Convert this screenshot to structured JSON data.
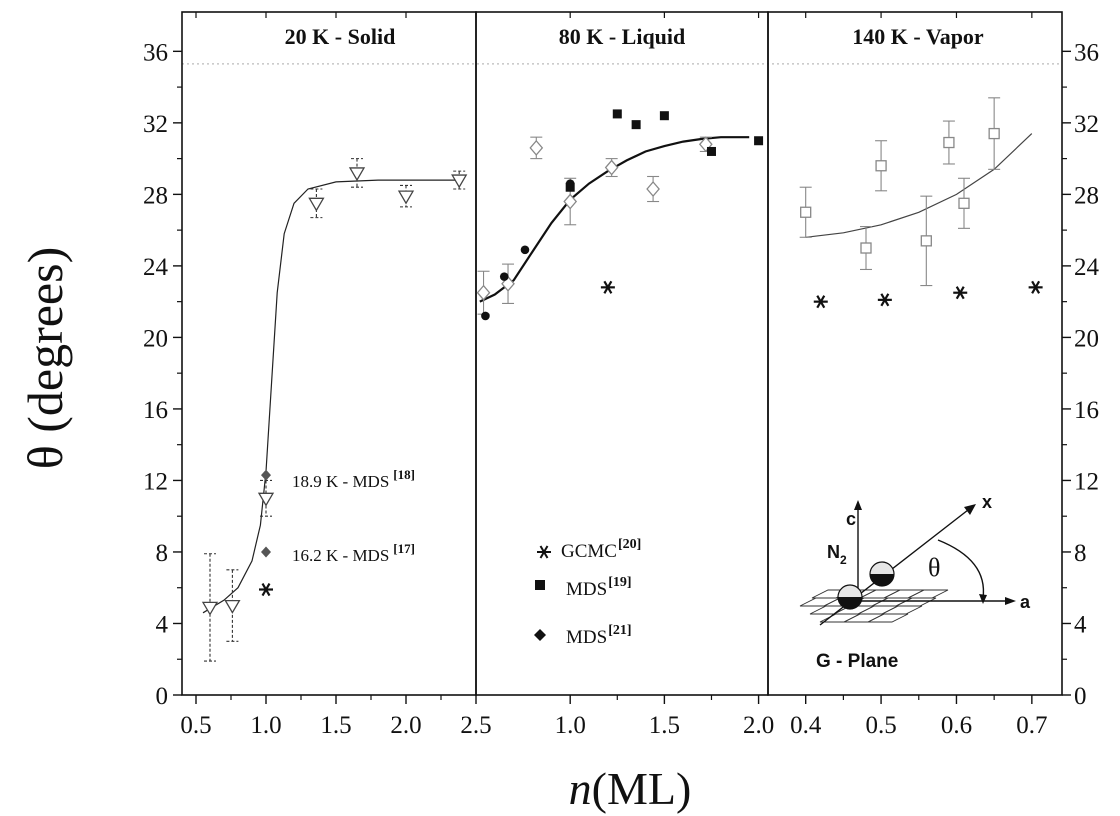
{
  "figure": {
    "ylabel": "θ (degrees)",
    "xlabel_var": "n",
    "xlabel_unit": "(ML)",
    "y_ticks": [
      "0",
      "4",
      "8",
      "12",
      "16",
      "20",
      "24",
      "28",
      "32",
      "36"
    ],
    "ylim": [
      0,
      38.2
    ],
    "reference_line_y": 35.3,
    "colors": {
      "solid_open": "#444444",
      "gray": "#888888",
      "black": "#111111",
      "reference_line": "#bbbbbb"
    }
  },
  "chart_data": [
    {
      "type": "scatter",
      "title": "20 K - Solid",
      "xlim": [
        0.4,
        2.5
      ],
      "x_ticks": [
        "0.5",
        "1.0",
        "1.5",
        "2.0",
        "2.5"
      ],
      "series": [
        {
          "marker": "open-down-triangle",
          "points": [
            {
              "x": 0.6,
              "y": 4.9,
              "err": 3.0
            },
            {
              "x": 0.76,
              "y": 5.0,
              "err": 2.0
            },
            {
              "x": 1.0,
              "y": 11.0,
              "err": 1.0
            },
            {
              "x": 1.36,
              "y": 27.5,
              "err": 0.8
            },
            {
              "x": 1.65,
              "y": 29.2,
              "err": 0.8
            },
            {
              "x": 2.0,
              "y": 27.9,
              "err": 0.6
            },
            {
              "x": 2.38,
              "y": 28.8,
              "err": 0.5
            }
          ],
          "fit": [
            [
              0.55,
              4.6
            ],
            [
              0.7,
              5.3
            ],
            [
              0.8,
              6.0
            ],
            [
              0.9,
              7.5
            ],
            [
              0.96,
              9.5
            ],
            [
              1.0,
              12.5
            ],
            [
              1.04,
              17.5
            ],
            [
              1.08,
              22.5
            ],
            [
              1.13,
              25.8
            ],
            [
              1.2,
              27.5
            ],
            [
              1.3,
              28.3
            ],
            [
              1.5,
              28.7
            ],
            [
              1.8,
              28.8
            ],
            [
              2.35,
              28.8
            ]
          ]
        },
        {
          "name": "18.9 K - MDS",
          "ref": "[18]",
          "marker": "filled-diamond-gray",
          "points": [
            {
              "x": 1.0,
              "y": 12.3
            }
          ]
        },
        {
          "name": "16.2 K - MDS",
          "ref": "[17]",
          "marker": "filled-diamond-gray",
          "points": [
            {
              "x": 1.0,
              "y": 8.0
            }
          ]
        },
        {
          "marker": "asterisk",
          "points": [
            {
              "x": 1.0,
              "y": 5.9
            }
          ]
        }
      ]
    },
    {
      "type": "scatter",
      "title": "80 K - Liquid",
      "xlim": [
        0.5,
        2.05
      ],
      "x_ticks": [
        "1.0",
        "1.5",
        "2.0"
      ],
      "series": [
        {
          "marker": "open-diamond",
          "points": [
            {
              "x": 0.54,
              "y": 22.5,
              "err": 1.2
            },
            {
              "x": 0.67,
              "y": 23.0,
              "err": 1.1
            },
            {
              "x": 0.82,
              "y": 30.6,
              "err": 0.6
            },
            {
              "x": 1.0,
              "y": 27.6,
              "err": 1.3
            },
            {
              "x": 1.22,
              "y": 29.5,
              "err": 0.5
            },
            {
              "x": 1.44,
              "y": 28.3,
              "err": 0.7
            },
            {
              "x": 1.72,
              "y": 30.8,
              "err": 0.4
            }
          ],
          "fit": [
            [
              0.52,
              22.0
            ],
            [
              0.6,
              22.4
            ],
            [
              0.7,
              23.2
            ],
            [
              0.8,
              24.8
            ],
            [
              0.9,
              26.4
            ],
            [
              1.0,
              27.7
            ],
            [
              1.1,
              28.6
            ],
            [
              1.2,
              29.3
            ],
            [
              1.3,
              29.9
            ],
            [
              1.4,
              30.4
            ],
            [
              1.5,
              30.7
            ],
            [
              1.6,
              30.95
            ],
            [
              1.7,
              31.1
            ],
            [
              1.8,
              31.2
            ],
            [
              1.95,
              31.2
            ]
          ]
        },
        {
          "name": "GCMC",
          "ref": "[20]",
          "marker": "asterisk",
          "points": [
            {
              "x": 1.2,
              "y": 22.8
            }
          ]
        },
        {
          "name": "MDS",
          "ref": "[19]",
          "marker": "filled-square",
          "points": [
            {
              "x": 1.25,
              "y": 32.5
            },
            {
              "x": 1.35,
              "y": 31.9
            },
            {
              "x": 1.5,
              "y": 32.4
            },
            {
              "x": 1.75,
              "y": 30.4
            },
            {
              "x": 2.0,
              "y": 31.0
            },
            {
              "x": 1.0,
              "y": 28.4
            }
          ]
        },
        {
          "name": "MDS",
          "ref": "[21]",
          "marker": "filled-circle",
          "points": [
            {
              "x": 0.55,
              "y": 21.2
            },
            {
              "x": 0.65,
              "y": 23.4
            },
            {
              "x": 0.76,
              "y": 24.9
            },
            {
              "x": 1.0,
              "y": 28.6
            }
          ]
        }
      ]
    },
    {
      "type": "scatter",
      "title": "140 K - Vapor",
      "xlim": [
        0.35,
        0.74
      ],
      "x_ticks": [
        "0.4",
        "0.5",
        "0.6",
        "0.7"
      ],
      "series": [
        {
          "marker": "open-square-gray",
          "points": [
            {
              "x": 0.4,
              "y": 27.0,
              "err": 1.4
            },
            {
              "x": 0.48,
              "y": 25.0,
              "err": 1.2
            },
            {
              "x": 0.5,
              "y": 29.6,
              "err": 1.4
            },
            {
              "x": 0.56,
              "y": 25.4,
              "err": 2.5
            },
            {
              "x": 0.59,
              "y": 30.9,
              "err": 1.2
            },
            {
              "x": 0.61,
              "y": 27.5,
              "err": 1.4
            },
            {
              "x": 0.65,
              "y": 31.4,
              "err": 2.0
            }
          ],
          "fit": [
            [
              0.4,
              25.6
            ],
            [
              0.45,
              25.85
            ],
            [
              0.5,
              26.3
            ],
            [
              0.55,
              27.0
            ],
            [
              0.6,
              28.0
            ],
            [
              0.65,
              29.4
            ],
            [
              0.7,
              31.4
            ]
          ]
        },
        {
          "marker": "asterisk",
          "points": [
            {
              "x": 0.42,
              "y": 22.0
            },
            {
              "x": 0.505,
              "y": 22.1
            },
            {
              "x": 0.605,
              "y": 22.5
            },
            {
              "x": 0.705,
              "y": 22.8
            }
          ]
        }
      ],
      "inset": {
        "labels": {
          "c": "c",
          "x": "x",
          "a": "a",
          "theta": "θ",
          "n2": "N",
          "n2_sub": "2",
          "plane": "G - Plane"
        }
      }
    }
  ]
}
